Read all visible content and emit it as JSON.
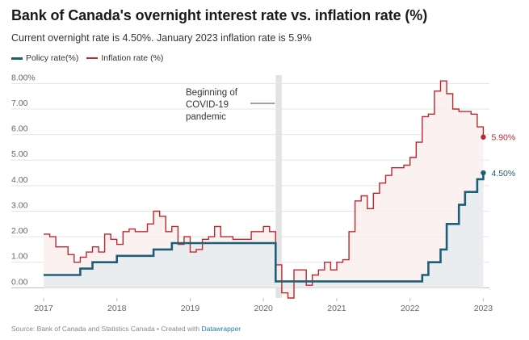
{
  "colors": {
    "policy": "#1d5f76",
    "inflation": "#c0272d",
    "band": "#e3e3e3",
    "grid": "#e5e5e5",
    "link": "#1d81a2"
  },
  "title": "Bank of Canada's overnight interest rate vs. inflation rate (%)",
  "subtitle": "Current overnight rate is 4.50%. January 2023 inflation rate is 5.9%",
  "footer": {
    "text": "Source: Bank of Canada and Statistics Canada • Created with",
    "link": "Datawrapper"
  },
  "chart_data": {
    "type": "line",
    "title": "Bank of Canada's overnight interest rate vs. inflation rate (%)",
    "subtitle": "Current overnight rate is 4.50%. January 2023 inflation rate is 5.9%",
    "xlim": [
      "2017-01",
      "2023-02"
    ],
    "ylim": [
      -0.4,
      8.2
    ],
    "grid": true,
    "legend_position": "top-left",
    "x_ticks": [
      "2017",
      "2018",
      "2019",
      "2020",
      "2021",
      "2022",
      "2023"
    ],
    "y_ticks": [
      "0.00",
      "1.00",
      "2.00",
      "3.00",
      "4.00",
      "5.00",
      "6.00",
      "7.00",
      "8.00%"
    ],
    "annotation": {
      "lines": [
        "Beginning of",
        "COVID-19",
        "pandemic"
      ],
      "band": [
        "2020-03",
        "2020-04"
      ]
    },
    "series": [
      {
        "name": "Policy rate(%)",
        "color": "#1d5f76",
        "end_label": "4.50%",
        "step": true,
        "x": [
          "2017-01",
          "2017-07",
          "2017-09",
          "2018-01",
          "2018-07",
          "2018-10",
          "2020-03",
          "2020-04",
          "2022-03",
          "2022-04",
          "2022-06",
          "2022-07",
          "2022-09",
          "2022-10",
          "2022-12",
          "2023-01"
        ],
        "y": [
          0.5,
          0.75,
          1.0,
          1.25,
          1.5,
          1.75,
          0.25,
          0.25,
          0.5,
          1.0,
          1.5,
          2.5,
          3.25,
          3.75,
          4.25,
          4.5
        ]
      },
      {
        "name": "Inflation rate (%)",
        "color": "#c0272d",
        "end_label": "5.90%",
        "step": true,
        "x": [
          "2017-01",
          "2017-02",
          "2017-03",
          "2017-05",
          "2017-06",
          "2017-07",
          "2017-08",
          "2017-09",
          "2017-10",
          "2017-11",
          "2017-12",
          "2018-01",
          "2018-02",
          "2018-03",
          "2018-04",
          "2018-05",
          "2018-06",
          "2018-07",
          "2018-08",
          "2018-09",
          "2018-10",
          "2018-11",
          "2018-12",
          "2019-01",
          "2019-02",
          "2019-03",
          "2019-04",
          "2019-05",
          "2019-06",
          "2019-07",
          "2019-08",
          "2019-09",
          "2019-10",
          "2019-11",
          "2019-12",
          "2020-01",
          "2020-02",
          "2020-03",
          "2020-04",
          "2020-05",
          "2020-06",
          "2020-08",
          "2020-09",
          "2020-10",
          "2020-11",
          "2020-12",
          "2021-01",
          "2021-02",
          "2021-03",
          "2021-04",
          "2021-05",
          "2021-06",
          "2021-07",
          "2021-08",
          "2021-09",
          "2021-10",
          "2021-11",
          "2021-12",
          "2022-01",
          "2022-02",
          "2022-03",
          "2022-04",
          "2022-05",
          "2022-06",
          "2022-07",
          "2022-08",
          "2022-09",
          "2022-10",
          "2022-11",
          "2022-12",
          "2023-01"
        ],
        "y": [
          2.1,
          2.0,
          1.6,
          1.3,
          1.0,
          1.2,
          1.4,
          1.6,
          1.4,
          2.1,
          1.9,
          1.7,
          2.2,
          2.3,
          2.2,
          2.2,
          2.5,
          3.0,
          2.8,
          2.2,
          2.4,
          1.7,
          2.0,
          1.4,
          1.5,
          1.9,
          2.0,
          2.4,
          2.0,
          2.0,
          1.9,
          1.9,
          1.9,
          2.2,
          2.2,
          2.4,
          2.2,
          0.9,
          -0.2,
          -0.4,
          0.7,
          0.1,
          0.5,
          0.7,
          1.0,
          0.7,
          1.0,
          1.1,
          2.2,
          3.4,
          3.6,
          3.1,
          3.7,
          4.1,
          4.4,
          4.7,
          4.7,
          4.8,
          5.1,
          5.7,
          6.7,
          6.8,
          7.7,
          8.1,
          7.6,
          7.0,
          6.9,
          6.9,
          6.8,
          6.3,
          5.9
        ]
      }
    ]
  }
}
